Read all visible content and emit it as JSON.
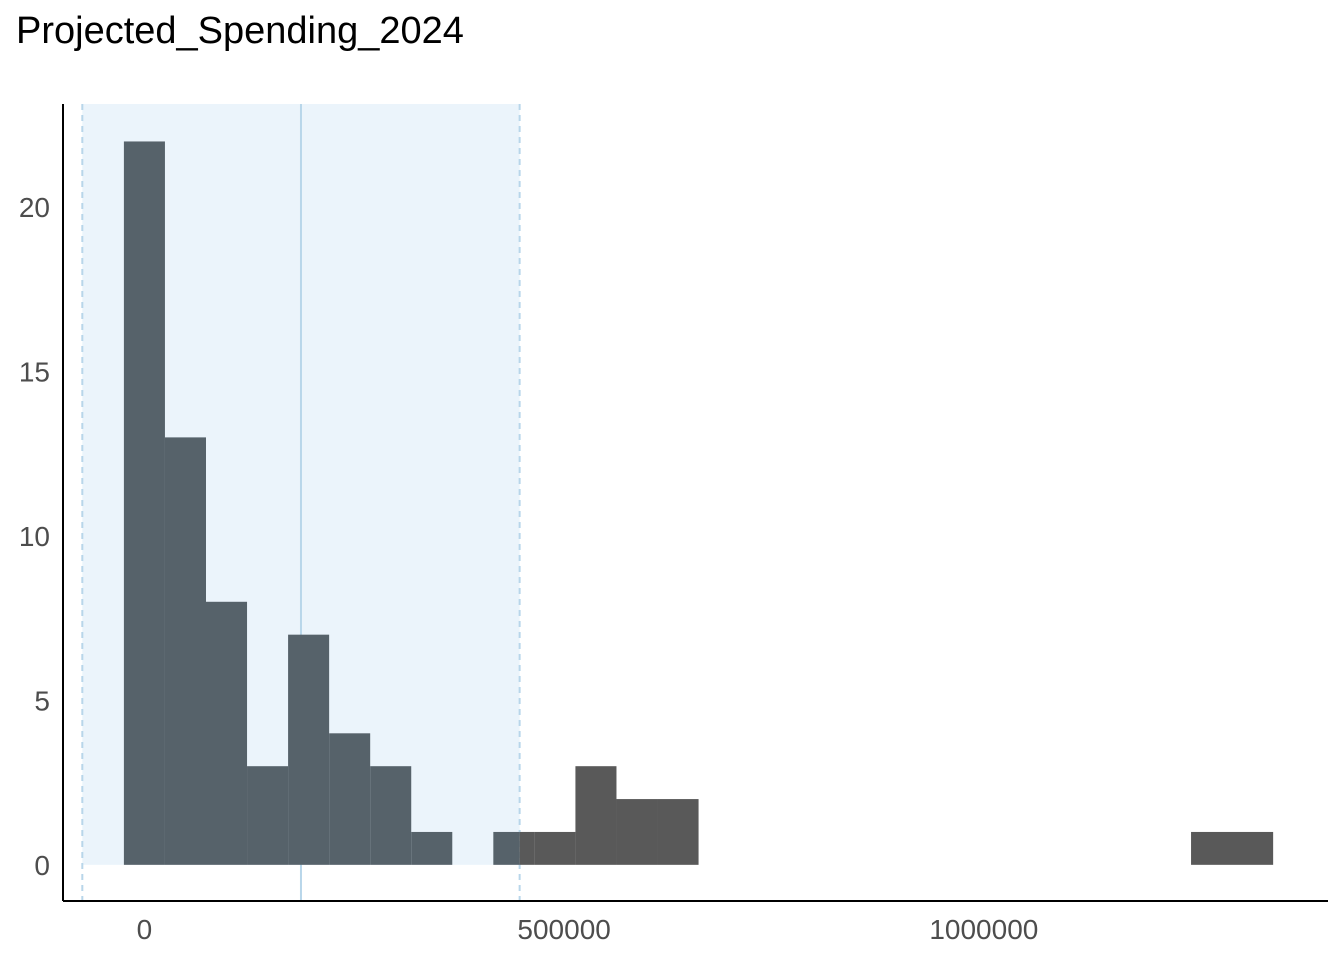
{
  "chart_data": {
    "type": "bar",
    "title": "Projected_Spending_2024",
    "xlabel": "",
    "ylabel": "",
    "xlim": [
      -97000,
      1410000
    ],
    "ylim": [
      -1.1,
      23.2
    ],
    "x_ticks": [
      0,
      500000,
      1000000
    ],
    "x_tick_labels": [
      "0",
      "500000",
      "1000000"
    ],
    "y_ticks": [
      0,
      5,
      10,
      15,
      20
    ],
    "y_tick_labels": [
      "0",
      "5",
      "10",
      "15",
      "20"
    ],
    "bin_width": 48900,
    "bins": [
      {
        "x0": -24450,
        "x1": 24450,
        "count": 22
      },
      {
        "x0": 24450,
        "x1": 73350,
        "count": 13
      },
      {
        "x0": 73350,
        "x1": 122250,
        "count": 8
      },
      {
        "x0": 122250,
        "x1": 171150,
        "count": 3
      },
      {
        "x0": 171150,
        "x1": 220050,
        "count": 7
      },
      {
        "x0": 220050,
        "x1": 268950,
        "count": 4
      },
      {
        "x0": 268950,
        "x1": 317850,
        "count": 3
      },
      {
        "x0": 317850,
        "x1": 366750,
        "count": 1
      },
      {
        "x0": 366750,
        "x1": 415650,
        "count": 0
      },
      {
        "x0": 415650,
        "x1": 464550,
        "count": 1
      },
      {
        "x0": 464550,
        "x1": 513450,
        "count": 1
      },
      {
        "x0": 513450,
        "x1": 562350,
        "count": 3
      },
      {
        "x0": 562350,
        "x1": 611250,
        "count": 2
      },
      {
        "x0": 611250,
        "x1": 660150,
        "count": 2
      },
      {
        "x0": 1246850,
        "x1": 1344650,
        "count": 1
      }
    ],
    "band": {
      "lower": -74000,
      "center": 186500,
      "upper": 447000
    },
    "colors": {
      "bar": "#595959",
      "bar_in_band": "#56626a",
      "band_fill": "#ebf4fb",
      "band_line": "#b8d6ea",
      "axis": "#000000",
      "tick_text": "#4d4d4d"
    }
  }
}
